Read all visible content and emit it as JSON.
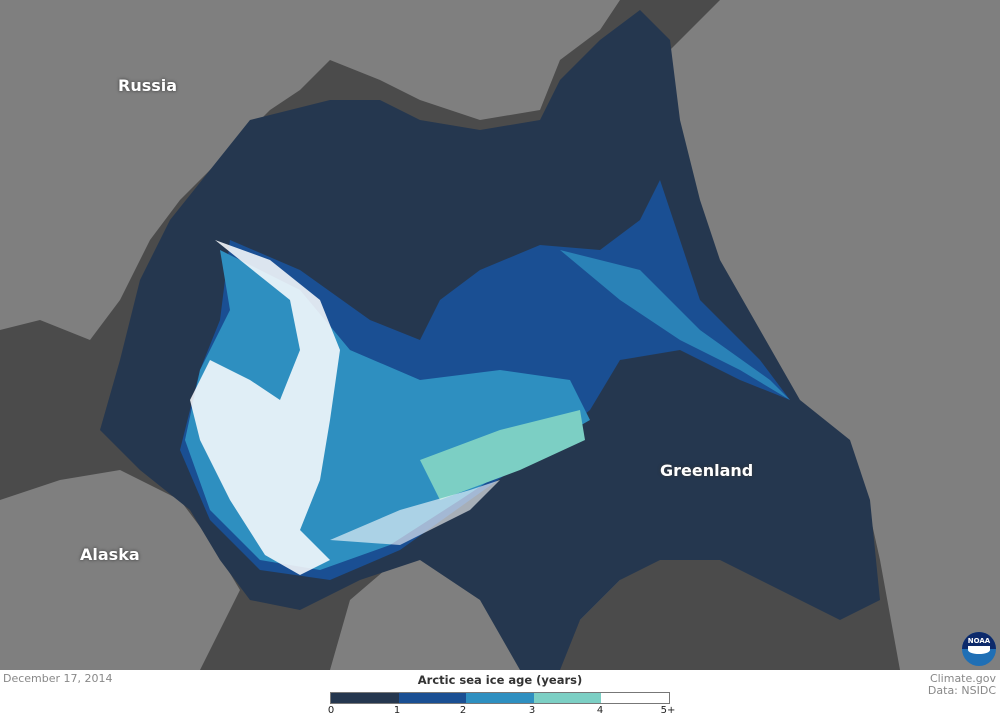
{
  "map": {
    "labels": {
      "russia": "Russia",
      "alaska": "Alaska",
      "greenland": "Greenland"
    },
    "colors": {
      "land": "#7f7f7f",
      "open_ocean": "#4b4b4b",
      "ice_0_1": "#25374f",
      "ice_1_2": "#1a4f93",
      "ice_2_3": "#2e8fc0",
      "ice_3_4": "#7ccfc4",
      "ice_4_5plus": "#ffffff"
    }
  },
  "footer": {
    "date": "December 17, 2014",
    "credit": "Climate.gov",
    "data_source": "Data: NSIDC",
    "logo_text": "NOAA"
  },
  "legend": {
    "title": "Arctic sea ice age (years)",
    "ticks": [
      "0",
      "1",
      "2",
      "3",
      "4",
      "5+"
    ],
    "colors": [
      "#25374f",
      "#1a4f93",
      "#2e8fc0",
      "#7ccfc4",
      "#ffffff"
    ]
  }
}
